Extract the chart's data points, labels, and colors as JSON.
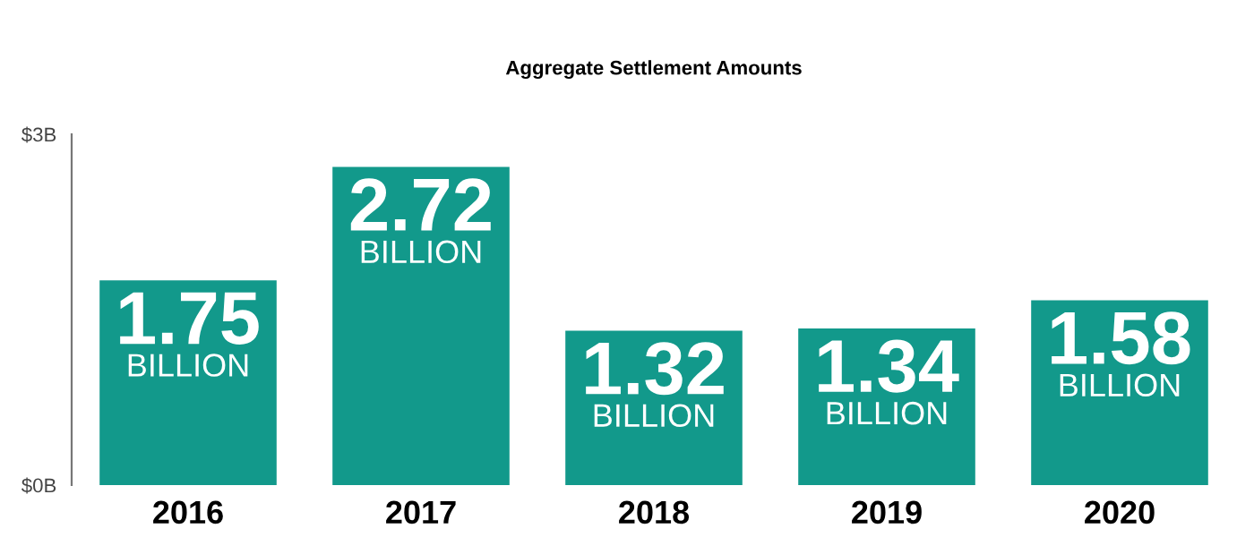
{
  "chart_data": {
    "type": "bar",
    "title": "Aggregate Settlement Amounts",
    "categories": [
      "2016",
      "2017",
      "2018",
      "2019",
      "2020"
    ],
    "values": [
      1.75,
      2.72,
      1.32,
      1.34,
      1.58
    ],
    "color": "#12998b",
    "value_labels": [
      "1.75\nBILLION",
      "2.72\nBILLION",
      "1.32\nBILLION",
      "1.34\nBILLION",
      "1.58\nBILLION"
    ],
    "ylim": [
      0,
      3
    ],
    "yticks": [
      {
        "value": 0,
        "label": "$0B"
      },
      {
        "value": 3,
        "label": "$3B"
      }
    ],
    "grid": false
  }
}
